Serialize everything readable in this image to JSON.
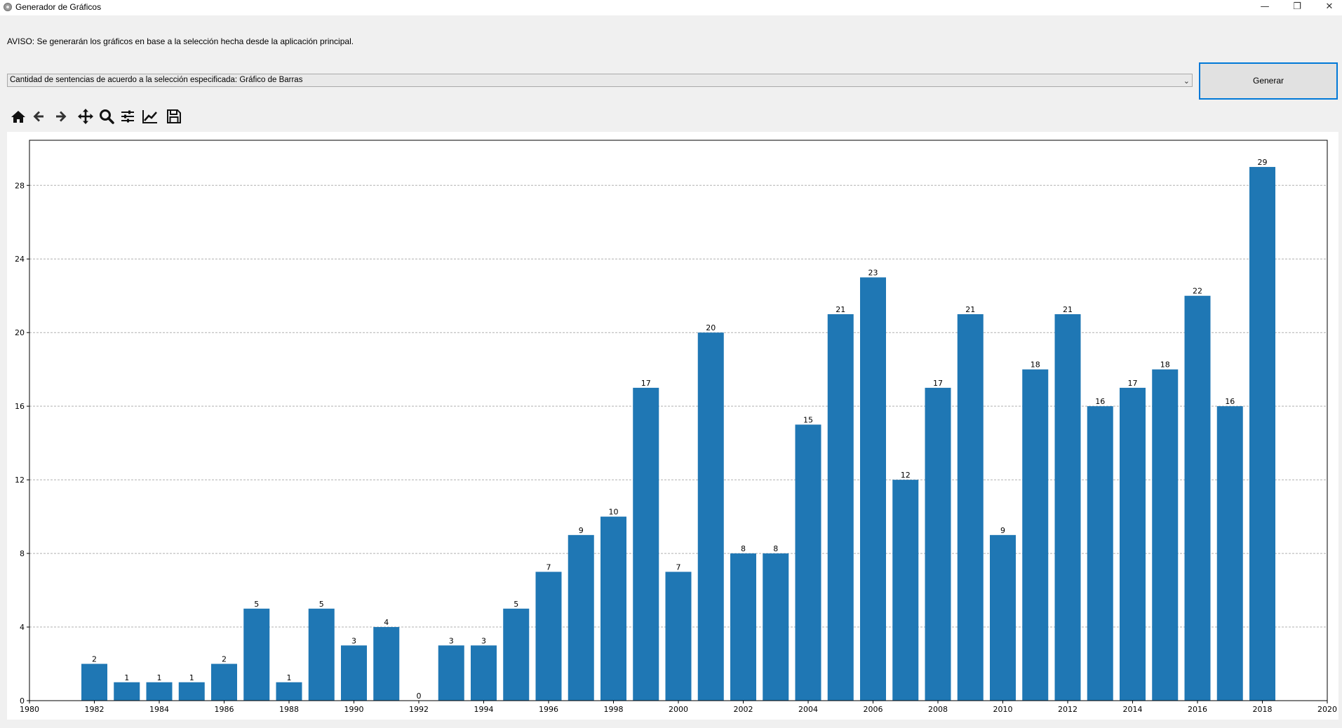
{
  "window": {
    "title": "Generador de Gráficos",
    "icon": "app-icon",
    "controls": [
      "minimize-icon",
      "restore-icon",
      "close-icon"
    ]
  },
  "notice": "AVISO: Se generarán los gráficos en base a la selección hecha desde la aplicación principal.",
  "selector": {
    "selected": "Cantidad de sentencias de acuerdo a la selección especificada: Gráfico de Barras"
  },
  "generate_button": {
    "label": "Generar"
  },
  "toolbar": {
    "tools": [
      "home-icon",
      "back-icon",
      "forward-icon",
      "pan-icon",
      "zoom-icon",
      "configure-subplots-icon",
      "edit-axes-icon",
      "save-icon"
    ]
  },
  "chart_data": {
    "type": "bar",
    "x": [
      1982,
      1983,
      1984,
      1985,
      1986,
      1987,
      1988,
      1989,
      1990,
      1991,
      1992,
      1993,
      1994,
      1995,
      1996,
      1997,
      1998,
      1999,
      2000,
      2001,
      2002,
      2003,
      2004,
      2005,
      2006,
      2007,
      2008,
      2009,
      2010,
      2011,
      2012,
      2013,
      2014,
      2015,
      2016,
      2017,
      2018
    ],
    "values": [
      2,
      1,
      1,
      1,
      2,
      5,
      1,
      5,
      3,
      4,
      0,
      3,
      3,
      5,
      7,
      9,
      10,
      17,
      7,
      20,
      8,
      8,
      15,
      21,
      23,
      12,
      17,
      21,
      9,
      18,
      21,
      16,
      17,
      18,
      22,
      16,
      29
    ],
    "xlim": [
      1980,
      2020
    ],
    "ylim": [
      0,
      30.45
    ],
    "xticks": [
      1980,
      1982,
      1984,
      1986,
      1988,
      1990,
      1992,
      1994,
      1996,
      1998,
      2000,
      2002,
      2004,
      2006,
      2008,
      2010,
      2012,
      2014,
      2016,
      2018,
      2020
    ],
    "yticks": [
      0,
      4,
      8,
      12,
      16,
      20,
      24,
      28
    ],
    "grid": "y-dashed",
    "bar_color": "#1f77b4",
    "data_labels": true,
    "title": "",
    "xlabel": "",
    "ylabel": ""
  }
}
